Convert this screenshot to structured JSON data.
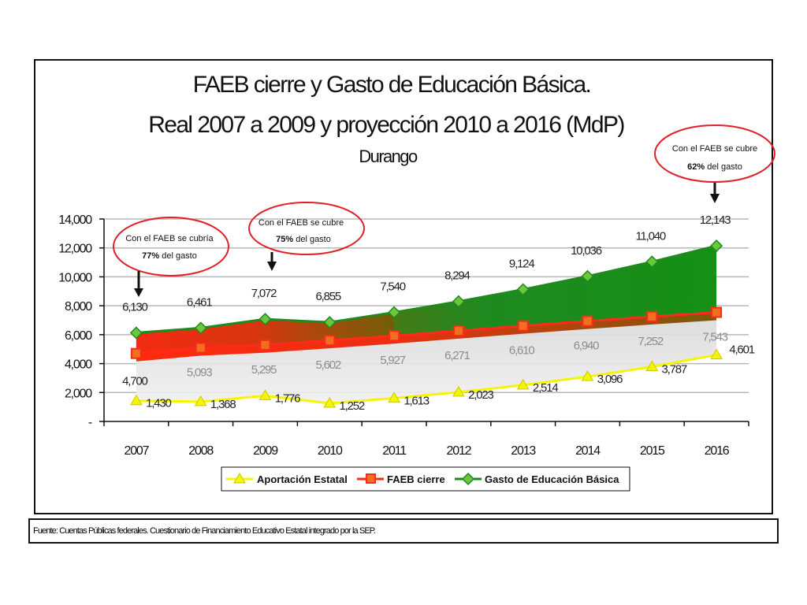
{
  "chart_data": {
    "type": "area",
    "title": "FAEB cierre y Gasto de Educación Básica.",
    "subtitle": "Real 2007 a 2009 y proyección 2010 a 2016 (MdP)",
    "region": "Durango",
    "categories": [
      "2007",
      "2008",
      "2009",
      "2010",
      "2011",
      "2012",
      "2013",
      "2014",
      "2015",
      "2016"
    ],
    "ylim": [
      0,
      14000
    ],
    "yticks": [
      0,
      2000,
      4000,
      6000,
      8000,
      10000,
      12000,
      14000
    ],
    "ytick_labels": [
      "-",
      "2,000",
      "4,000",
      "6,000",
      "8,000",
      "10,000",
      "12,000",
      "14,000"
    ],
    "grid": true,
    "legend_position": "bottom",
    "series": [
      {
        "name": "Aportación Estatal",
        "values": [
          1430,
          1368,
          1776,
          1252,
          1613,
          2023,
          2514,
          3096,
          3787,
          4601
        ],
        "labels": [
          "1,430",
          "1,368",
          "1,776",
          "1,252",
          "1,613",
          "2,023",
          "2,514",
          "3,096",
          "3,787",
          "4,601"
        ],
        "color": "#f5f500"
      },
      {
        "name": "FAEB cierre",
        "values": [
          4700,
          5093,
          5295,
          5602,
          5927,
          6271,
          6610,
          6940,
          7252,
          7543
        ],
        "labels": [
          "4,700",
          "5,093",
          "5,295",
          "5,602",
          "5,927",
          "6,271",
          "6,610",
          "6,940",
          "7,252",
          "7,543"
        ],
        "color": "#ff2a1a"
      },
      {
        "name": "Gasto de Educación Básica",
        "values": [
          6130,
          6461,
          7072,
          6855,
          7540,
          8294,
          9124,
          10036,
          11040,
          12143
        ],
        "labels": [
          "6,130",
          "6,461",
          "7,072",
          "6,855",
          "7,540",
          "8,294",
          "9,124",
          "10,036",
          "11,040",
          "12,143"
        ],
        "color": "#1f8a1f"
      }
    ],
    "annotations": [
      {
        "line1": "Con el FAEB se cubría",
        "pct": "77%",
        "rest": " del gasto"
      },
      {
        "line1": "Con el FAEB se cubre",
        "pct": "75%",
        "rest": " del gasto"
      },
      {
        "line1": "Con el FAEB se cubre",
        "pct": "62%",
        "rest": " del gasto"
      }
    ]
  },
  "source": "Fuente: Cuentas Públicas federales. Cuestionario de Financiamiento Educativo Estatal integrado por la SEP."
}
